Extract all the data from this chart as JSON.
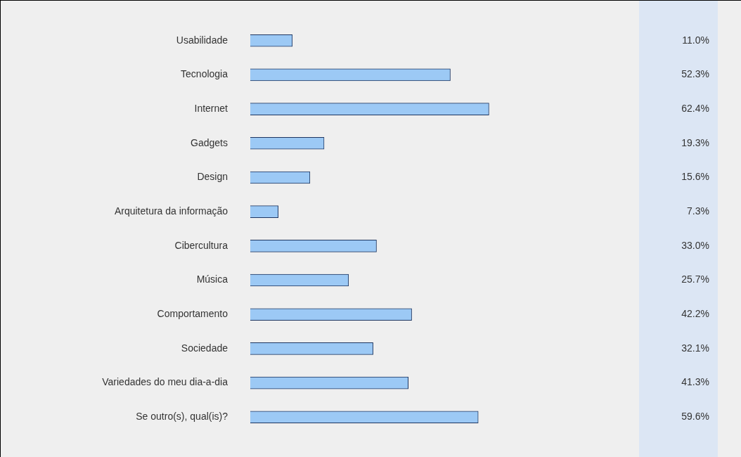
{
  "chart_data": {
    "type": "bar",
    "orientation": "horizontal",
    "categories": [
      "Usabilidade",
      "Tecnologia",
      "Internet",
      "Gadgets",
      "Design",
      "Arquitetura da informação",
      "Cibercultura",
      "Música",
      "Comportamento",
      "Sociedade",
      "Variedades do meu dia-a-dia",
      "Se outro(s), qual(is)?"
    ],
    "values": [
      11.0,
      52.3,
      62.4,
      19.3,
      15.6,
      7.3,
      33.0,
      25.7,
      42.2,
      32.1,
      41.3,
      59.6
    ],
    "value_labels": [
      "11.0%",
      "52.3%",
      "62.4%",
      "19.3%",
      "15.6%",
      "7.3%",
      "33.0%",
      "25.7%",
      "42.2%",
      "32.1%",
      "41.3%",
      "59.6%"
    ],
    "color": "#9cc9f5",
    "grid": false,
    "legend": false
  }
}
